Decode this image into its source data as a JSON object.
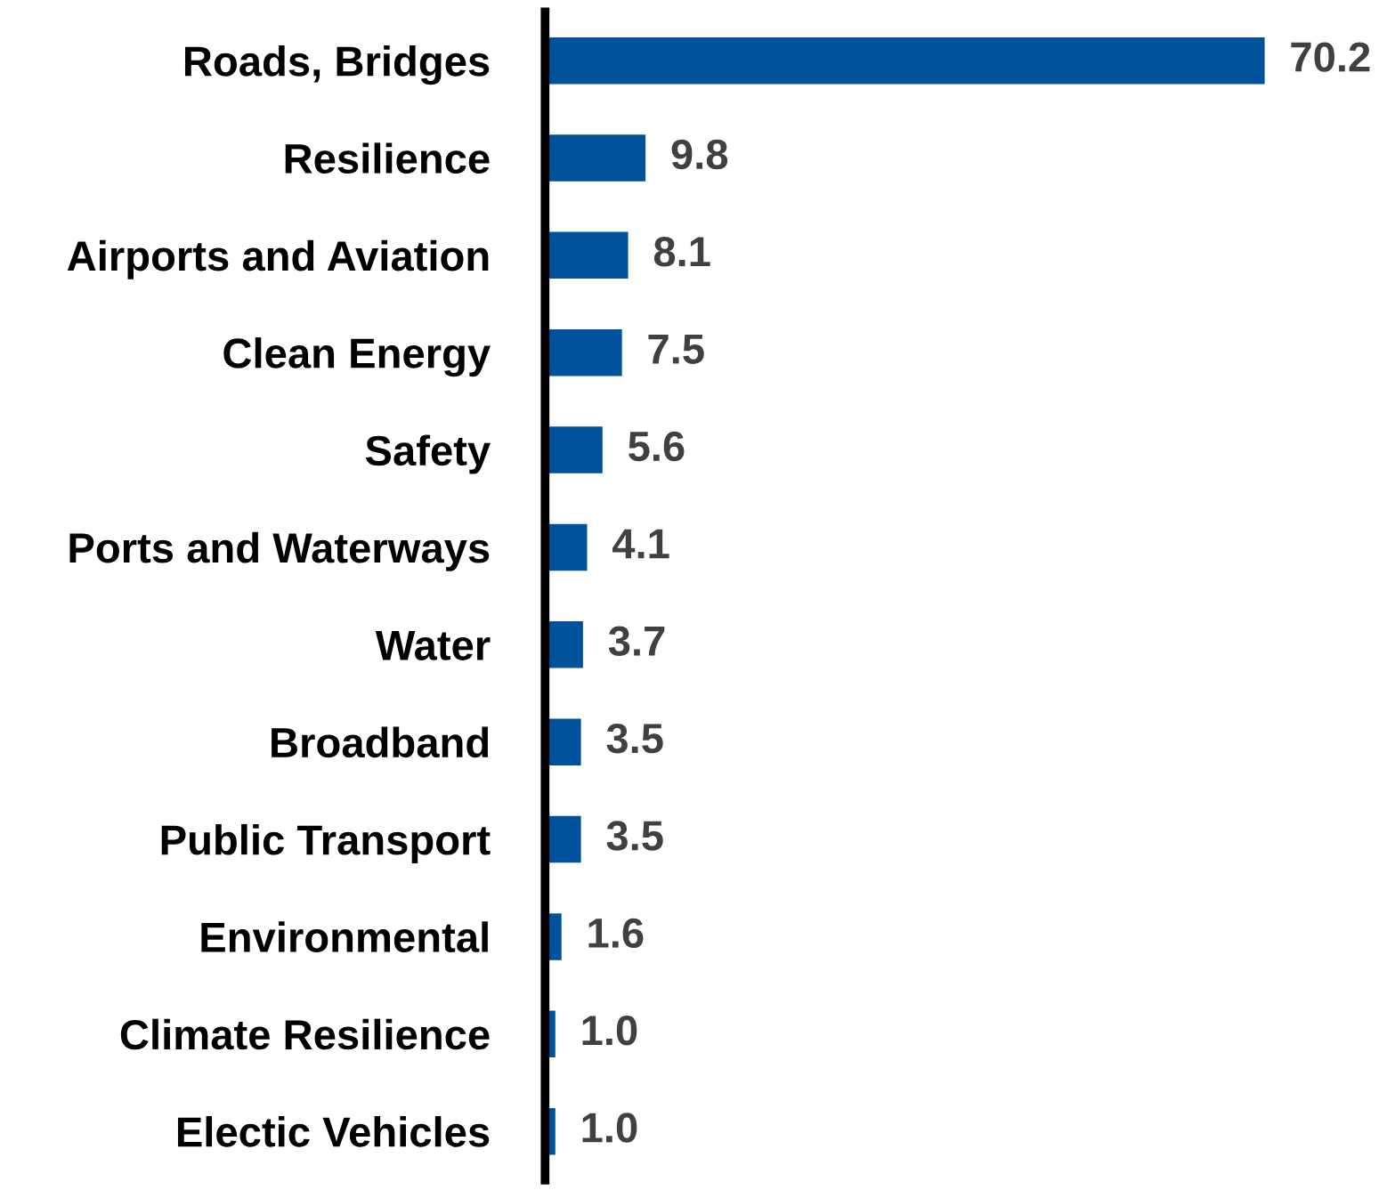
{
  "chart_data": {
    "type": "bar",
    "orientation": "horizontal",
    "color": "#00539b",
    "grid": false,
    "legend": false,
    "categories": [
      "Roads, Bridges",
      "Resilience",
      "Airports and Aviation",
      "Clean Energy",
      "Safety",
      "Ports and Waterways",
      "Water",
      "Broadband",
      "Public Transport",
      "Environmental",
      "Climate Resilience",
      "Electic Vehicles"
    ],
    "values": [
      70.2,
      9.8,
      8.1,
      7.5,
      5.6,
      4.1,
      3.7,
      3.5,
      3.5,
      1.6,
      1.0,
      1.0
    ],
    "value_labels": [
      "70.2",
      "9.8",
      "8.1",
      "7.5",
      "5.6",
      "4.1",
      "3.7",
      "3.5",
      "3.5",
      "1.6",
      "1.0",
      "1.0"
    ]
  }
}
